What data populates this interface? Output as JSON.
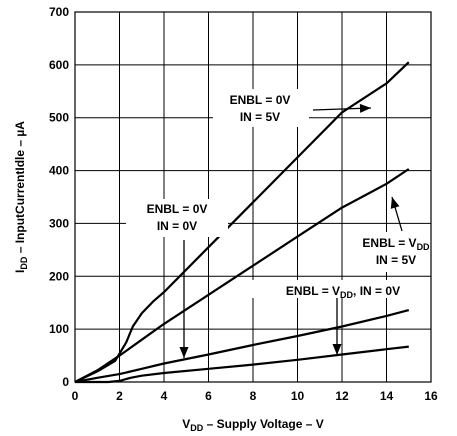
{
  "chart_data": {
    "type": "line",
    "xlabel": {
      "main": "V",
      "sub": "DD",
      "rest": " – Supply Voltage – V"
    },
    "ylabel": {
      "main": "I",
      "sub": "DD",
      "rest": " – InputCurrentIdle – µA"
    },
    "xlim": [
      0,
      16
    ],
    "ylim": [
      0,
      700
    ],
    "xticks": [
      0,
      2,
      4,
      6,
      8,
      10,
      12,
      14,
      16
    ],
    "yticks": [
      0,
      100,
      200,
      300,
      400,
      500,
      600,
      700
    ],
    "grid": true,
    "series": [
      {
        "x": [
          0,
          1,
          1.8,
          2.3,
          2.6,
          3.0,
          3.5,
          4,
          6,
          8,
          10,
          12,
          14,
          15
        ],
        "y": [
          0,
          20,
          40,
          75,
          105,
          130,
          152,
          170,
          255,
          340,
          425,
          510,
          565,
          605
        ]
      },
      {
        "x": [
          0,
          1,
          2,
          3,
          4,
          6,
          8,
          10,
          12,
          14,
          15
        ],
        "y": [
          0,
          22,
          50,
          80,
          110,
          165,
          220,
          275,
          330,
          375,
          403
        ]
      },
      {
        "x": [
          0,
          1,
          2,
          3,
          4,
          6,
          8,
          10,
          12,
          14,
          15
        ],
        "y": [
          0,
          8,
          15,
          25,
          35,
          52,
          70,
          87,
          105,
          125,
          136
        ]
      },
      {
        "x": [
          0,
          1.5,
          2.0,
          2.5,
          3.0,
          4,
          6,
          8,
          10,
          12,
          14,
          15
        ],
        "y": [
          0,
          0,
          2,
          8,
          12,
          17,
          25,
          33,
          42,
          52,
          62,
          67
        ]
      }
    ],
    "annotations": [
      {
        "lines": [
          {
            "main": "ENBL = 0V"
          },
          {
            "main": "IN = 5V"
          }
        ]
      },
      {
        "lines": [
          {
            "main": "ENBL = 0V"
          },
          {
            "main": "IN = 0V"
          }
        ]
      },
      {
        "lines": [
          {
            "main": "ENBL = V",
            "sub": "DD"
          },
          {
            "main": "IN = 5V"
          }
        ]
      },
      {
        "lines": [
          {
            "main": "ENBL = V",
            "sub": "DD",
            "rest": ", IN = 0V"
          }
        ]
      }
    ]
  }
}
